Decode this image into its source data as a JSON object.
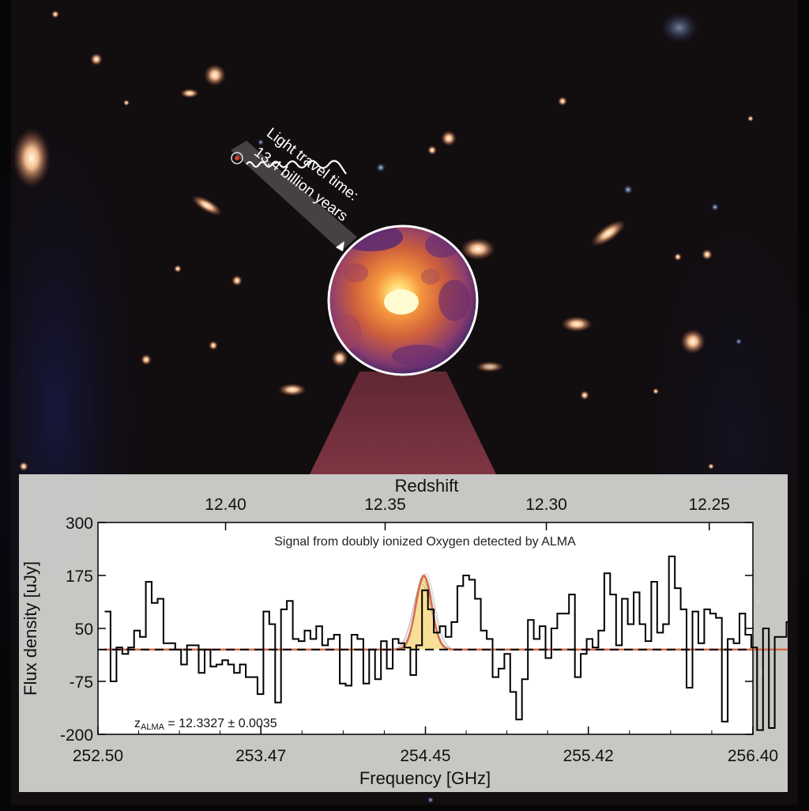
{
  "image": {
    "caption_line1": "Light travel time:",
    "caption_line2": "13.4 billion years",
    "icon": "galaxy-marker-icon"
  },
  "chart_data": {
    "type": "line",
    "title": "Signal from doubly ionized Oxygen detected by ALMA",
    "xlabel": "Frequency [GHz]",
    "ylabel": "Flux density [uJy]",
    "top_axis_label": "Redshift",
    "xlim": [
      252.5,
      256.4
    ],
    "ylim": [
      -200,
      300
    ],
    "x_ticks": [
      "252.50",
      "253.47",
      "254.45",
      "255.42",
      "256.40"
    ],
    "y_ticks": [
      "300",
      "175",
      "50",
      "-75",
      "-200"
    ],
    "top_ticks": [
      "12.40",
      "12.35",
      "12.30",
      "12.25"
    ],
    "top_tick_positions_ghz": [
      253.26,
      254.21,
      255.17,
      256.14
    ],
    "redshift_annotation": "z",
    "redshift_annotation_sub": "ALMA",
    "redshift_annotation_value": " = 12.3327 ± 0.0035",
    "series": [
      {
        "name": "",
        "style": "step",
        "color": "#000000",
        "x_start": 252.54,
        "x_step": 0.035,
        "values": [
          90,
          -75,
          5,
          -10,
          5,
          45,
          30,
          160,
          110,
          120,
          15,
          15,
          0,
          -35,
          10,
          10,
          -55,
          0,
          -40,
          -35,
          -25,
          -35,
          -55,
          -35,
          -65,
          -65,
          -105,
          90,
          60,
          -125,
          95,
          115,
          25,
          20,
          45,
          25,
          55,
          10,
          25,
          35,
          -80,
          -85,
          35,
          25,
          -80,
          0,
          -70,
          20,
          -45,
          25,
          15,
          5,
          -60,
          10,
          140,
          95,
          40,
          55,
          30,
          65,
          150,
          175,
          165,
          120,
          45,
          25,
          -65,
          -45,
          -10,
          -100,
          -165,
          -70,
          70,
          25,
          55,
          -20,
          50,
          85,
          85,
          130,
          -65,
          -10,
          25,
          5,
          45,
          180,
          130,
          10,
          120,
          60,
          135,
          60,
          20,
          160,
          40,
          60,
          220,
          145,
          95,
          -90,
          90,
          15,
          95,
          85,
          75,
          -170,
          25,
          15,
          85,
          35,
          5,
          -190,
          50,
          -185,
          30,
          30,
          65,
          100,
          55
        ]
      },
      {
        "name": "",
        "style": "gaussian-fit",
        "color": "#d66a4e",
        "amplitude": 175,
        "center": 254.44,
        "sigma": 0.047
      }
    ],
    "baseline": 0,
    "grid": false,
    "legend": "none"
  }
}
